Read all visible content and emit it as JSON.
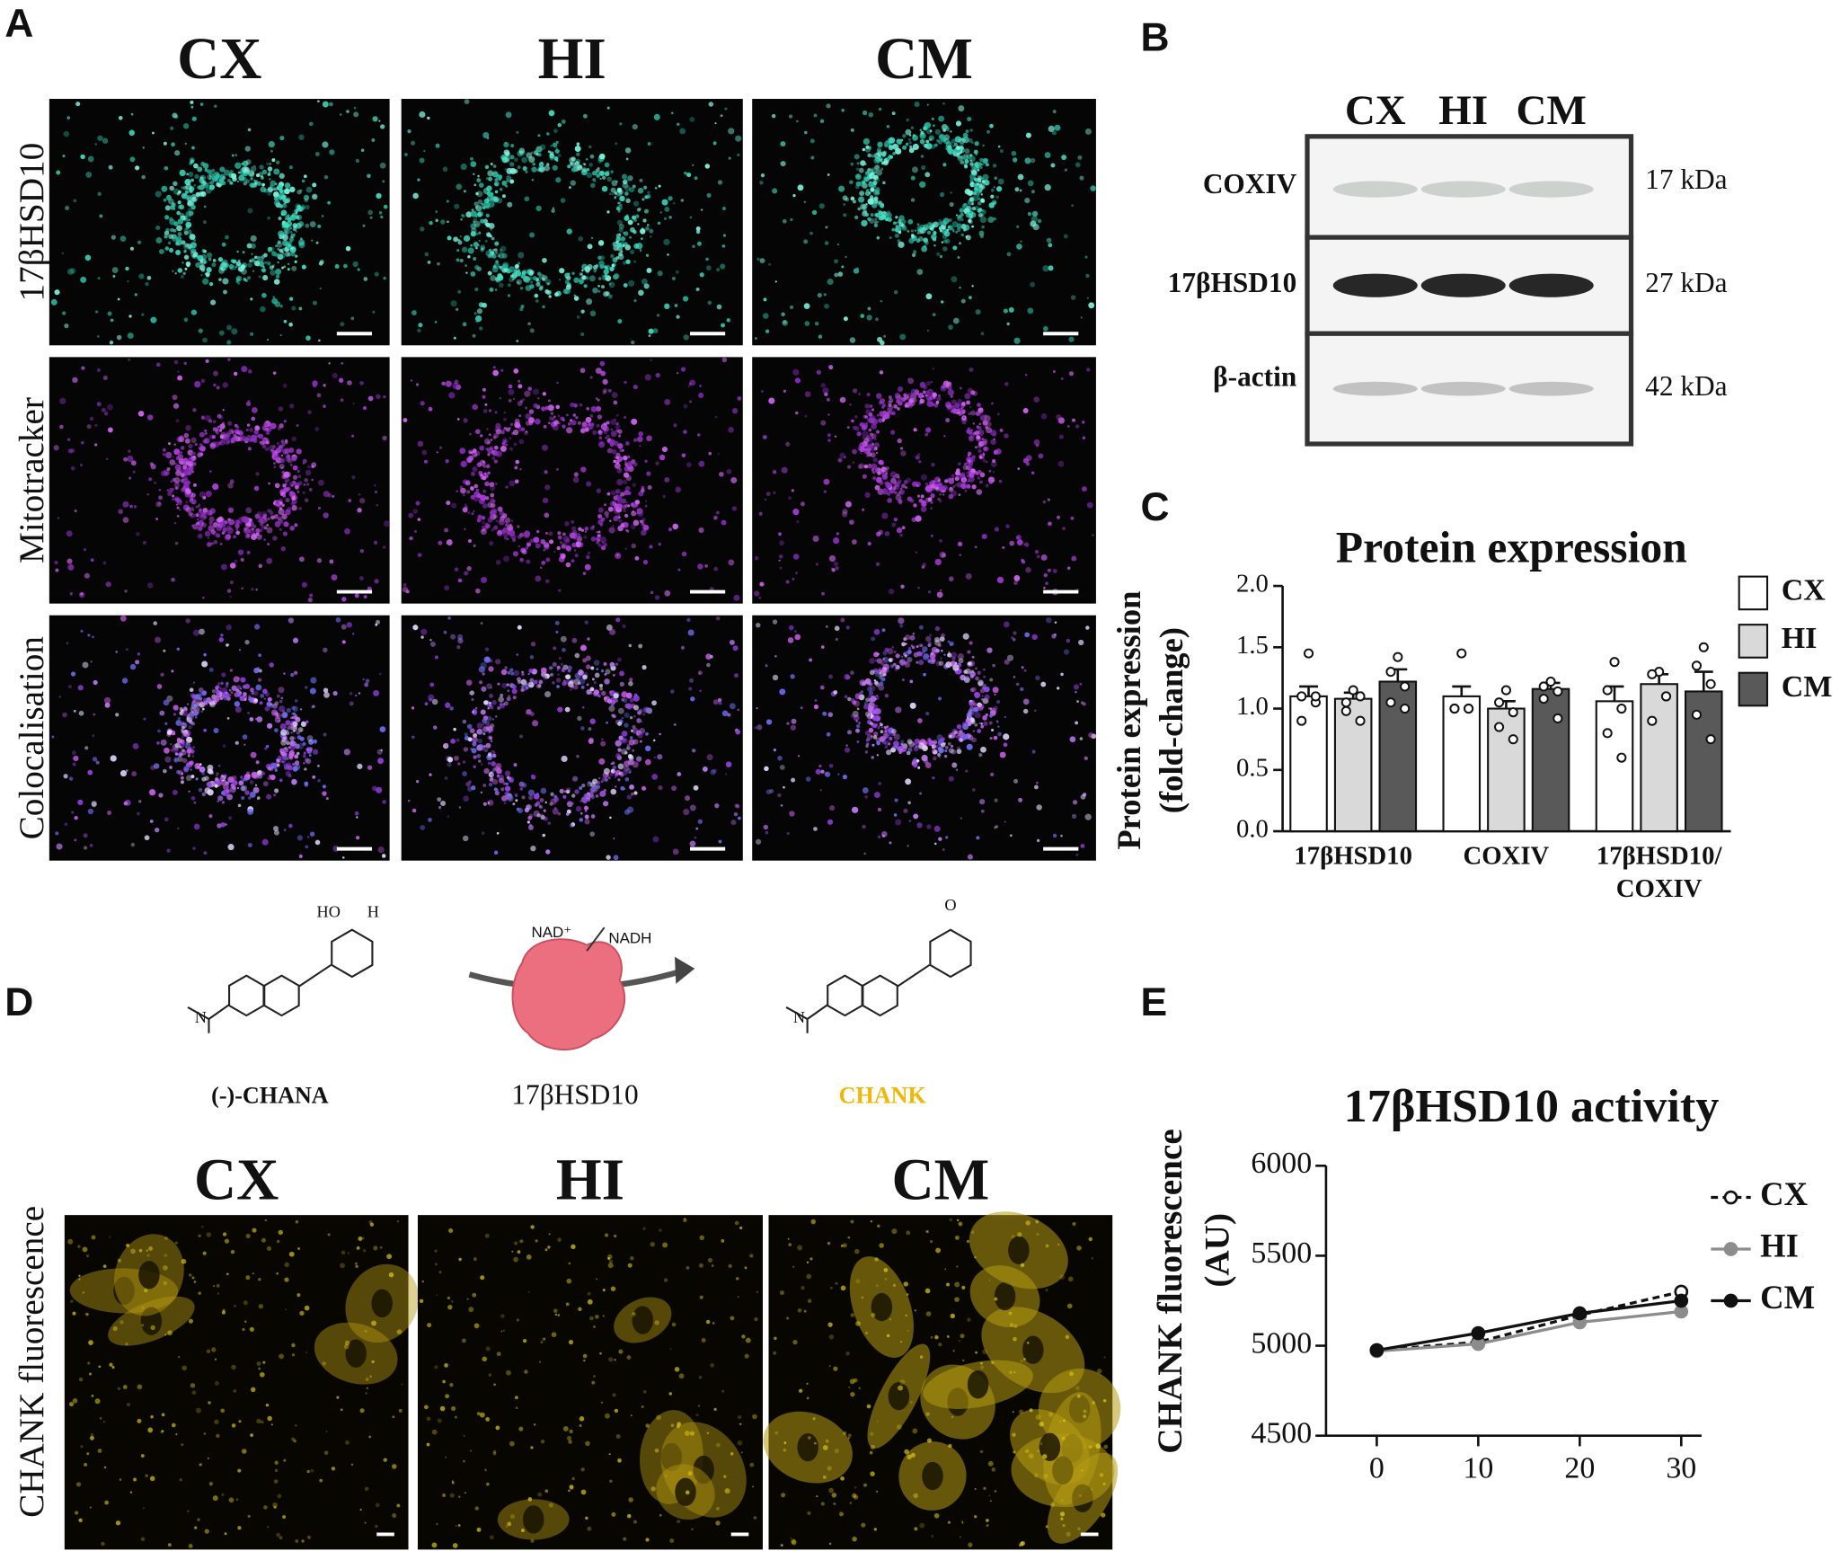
{
  "panel_a": {
    "letter": "A",
    "columns": [
      "CX",
      "HI",
      "CM"
    ],
    "rows": [
      "17βHSD10",
      "Mitotracker",
      "Colocalisation"
    ]
  },
  "panel_b": {
    "letter": "B",
    "lanes": [
      "CX",
      "HI",
      "CM"
    ],
    "bands": [
      {
        "label": "COXIV",
        "size": "17 kDa"
      },
      {
        "label": "17βHSD10",
        "size": "27 kDa"
      },
      {
        "label": "β-actin",
        "size": "42 kDa"
      }
    ]
  },
  "panel_d": {
    "letter": "D",
    "substrate": "(-)-CHANA",
    "enzyme": "17βHSD10",
    "product": "CHANK",
    "cofactor_in": "NAD⁺",
    "cofactor_out": "NADH",
    "structure_labels": {
      "substrate": [
        "N",
        "HO",
        "H"
      ],
      "product": [
        "N",
        "O"
      ]
    },
    "columns": [
      "CX",
      "HI",
      "CM"
    ],
    "y_label": "CHANK fluorescence"
  },
  "chart_data": [
    {
      "letter": "C",
      "type": "bar",
      "title": "Protein expression",
      "y_label": [
        "Protein expression",
        "(fold-change)"
      ],
      "categories": [
        "17βHSD10",
        "COXIV",
        [
          "17βHSD10/",
          "COXIV"
        ]
      ],
      "series": [
        {
          "name": "CX",
          "color": "#ffffff",
          "values": [
            1.1,
            1.1,
            1.06
          ],
          "errors": [
            0.08,
            0.08,
            0.12
          ],
          "points": [
            [
              1.45,
              1.1,
              1.05,
              0.9,
              1.1
            ],
            [
              1.45,
              1.0,
              1.0,
              1.0,
              1.0
            ],
            [
              1.38,
              1.15,
              1.0,
              0.8,
              0.6
            ]
          ]
        },
        {
          "name": "HI",
          "color": "#d9d9d9",
          "values": [
            1.08,
            1.0,
            1.2
          ],
          "errors": [
            0.05,
            0.06,
            0.08
          ],
          "points": [
            [
              1.15,
              1.05,
              1.1,
              0.98,
              0.9
            ],
            [
              1.15,
              1.05,
              0.97,
              0.85,
              0.75
            ],
            [
              1.3,
              1.28,
              1.1,
              0.9,
              1.1
            ]
          ]
        },
        {
          "name": "CM",
          "color": "#595959",
          "values": [
            1.22,
            1.16,
            1.14
          ],
          "errors": [
            0.1,
            0.05,
            0.16
          ],
          "points": [
            [
              1.42,
              1.3,
              1.18,
              1.05,
              1.0
            ],
            [
              1.22,
              1.18,
              1.14,
              1.08,
              0.92
            ],
            [
              1.5,
              1.35,
              1.2,
              0.95,
              0.75
            ]
          ]
        }
      ],
      "ylim": [
        0,
        2
      ],
      "yticks": [
        {
          "value": 0,
          "label": "0.0"
        },
        0.5,
        {
          "value": 1,
          "label": "1.0"
        },
        1.5,
        {
          "value": 2,
          "label": "2.0"
        }
      ],
      "legend": "right"
    },
    {
      "letter": "E",
      "type": "line",
      "title": "17βHSD10 activity",
      "y_label": [
        "CHANK fluorescence",
        "(AU)"
      ],
      "x": [
        0,
        10,
        20,
        30
      ],
      "series": [
        {
          "name": "CX",
          "color": "#111111",
          "line_style": "dashed",
          "marker": "open",
          "values": [
            4975,
            5020,
            5170,
            5300
          ],
          "errors": [
            15,
            20,
            25,
            35
          ]
        },
        {
          "name": "HI",
          "color": "#8c8c8c",
          "line_style": "solid",
          "marker": "filled",
          "values": [
            4970,
            5010,
            5130,
            5190
          ],
          "errors": [
            10,
            15,
            20,
            20
          ]
        },
        {
          "name": "CM",
          "color": "#111111",
          "line_style": "solid",
          "marker": "filled",
          "values": [
            4975,
            5070,
            5180,
            5250
          ],
          "errors": [
            15,
            25,
            25,
            30
          ]
        }
      ],
      "xlim": [
        -5,
        32
      ],
      "ylim": [
        4500,
        6000
      ],
      "xticks": [
        0,
        10,
        20,
        30
      ],
      "yticks": [
        4500,
        5000,
        5500,
        6000
      ],
      "legend": "right"
    }
  ]
}
